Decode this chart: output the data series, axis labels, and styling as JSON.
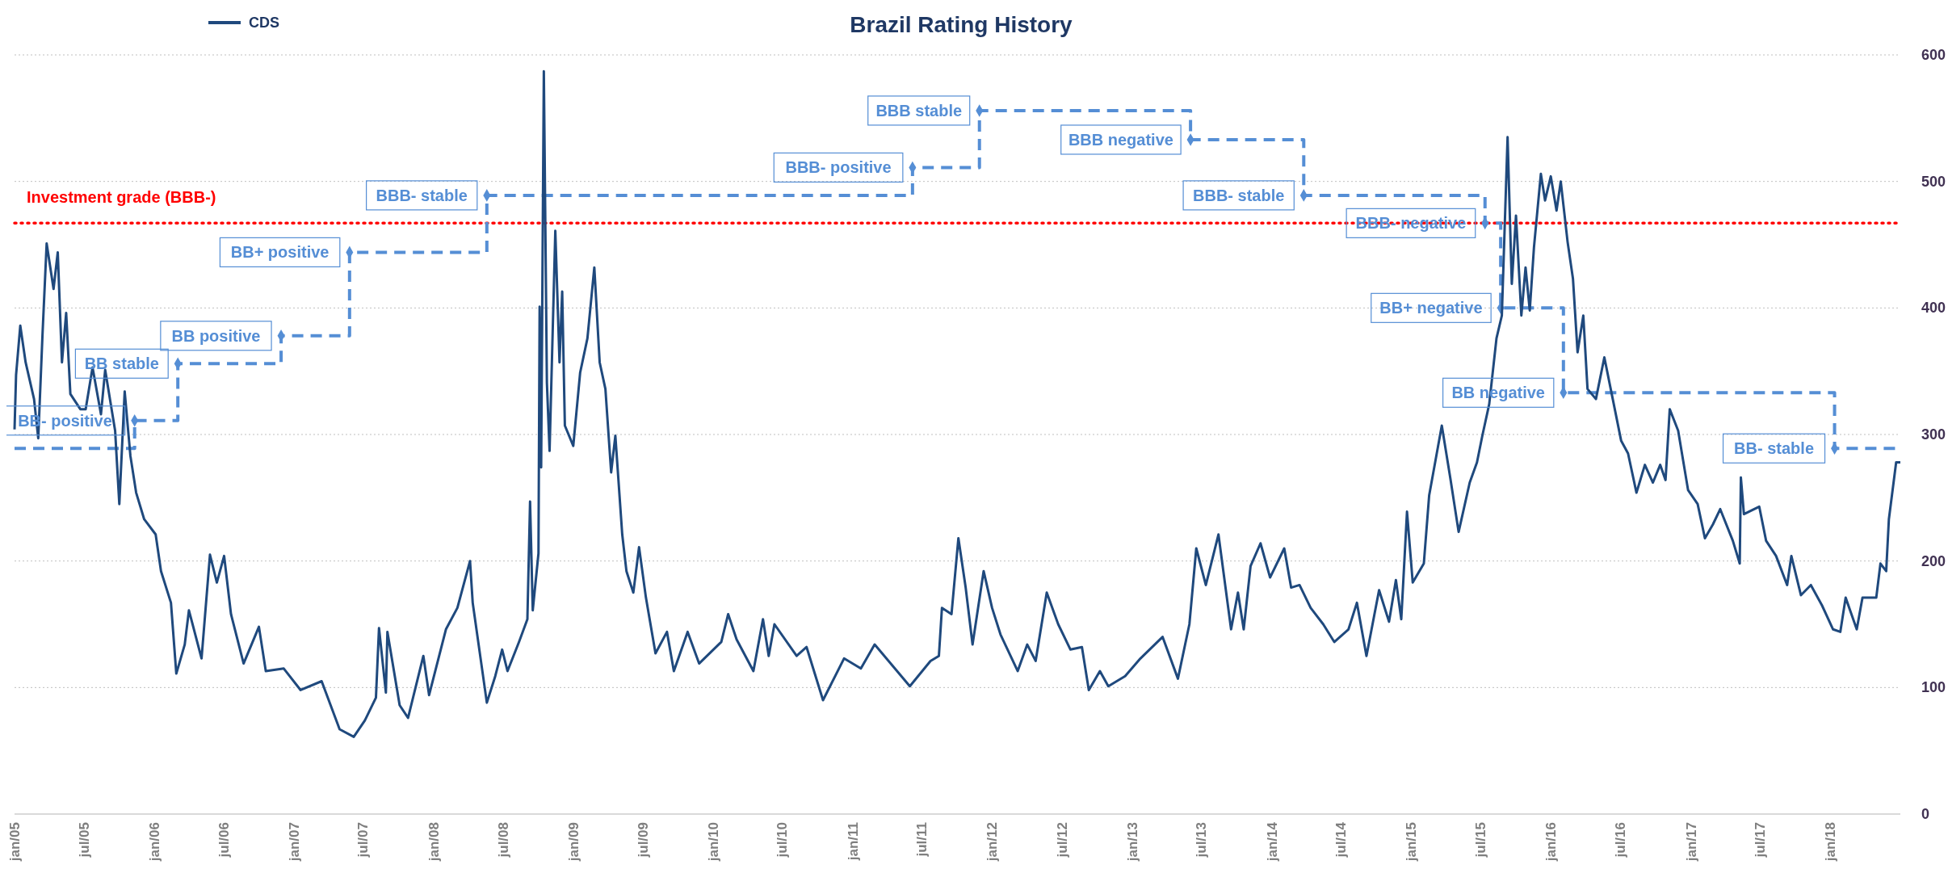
{
  "chart_data": {
    "type": "line",
    "title": "Brazil Rating History",
    "xlim": [
      "2005-01-01",
      "2018-07-03"
    ],
    "xticks": [
      {
        "value": "2005-01-01",
        "label": "jan/05"
      },
      {
        "value": "2005-07-01",
        "label": "jul/05"
      },
      {
        "value": "2006-01-01",
        "label": "jan/06"
      },
      {
        "value": "2006-07-01",
        "label": "jul/06"
      },
      {
        "value": "2007-01-01",
        "label": "jan/07"
      },
      {
        "value": "2007-07-01",
        "label": "jul/07"
      },
      {
        "value": "2008-01-01",
        "label": "jan/08"
      },
      {
        "value": "2008-07-01",
        "label": "jul/08"
      },
      {
        "value": "2009-01-01",
        "label": "jan/09"
      },
      {
        "value": "2009-07-01",
        "label": "jul/09"
      },
      {
        "value": "2010-01-01",
        "label": "jan/10"
      },
      {
        "value": "2010-07-01",
        "label": "jul/10"
      },
      {
        "value": "2011-01-01",
        "label": "jan/11"
      },
      {
        "value": "2011-07-01",
        "label": "jul/11"
      },
      {
        "value": "2012-01-01",
        "label": "jan/12"
      },
      {
        "value": "2012-07-01",
        "label": "jul/12"
      },
      {
        "value": "2013-01-01",
        "label": "jan/13"
      },
      {
        "value": "2013-07-01",
        "label": "jul/13"
      },
      {
        "value": "2014-01-01",
        "label": "jan/14"
      },
      {
        "value": "2014-07-01",
        "label": "jul/14"
      },
      {
        "value": "2015-01-01",
        "label": "jan/15"
      },
      {
        "value": "2015-07-01",
        "label": "jul/15"
      },
      {
        "value": "2016-01-01",
        "label": "jan/16"
      },
      {
        "value": "2016-07-01",
        "label": "jul/16"
      },
      {
        "value": "2017-01-01",
        "label": "jan/17"
      },
      {
        "value": "2017-07-01",
        "label": "jul/17"
      },
      {
        "value": "2018-01-01",
        "label": "jan/18"
      }
    ],
    "ylim": [
      0,
      600
    ],
    "yticks": [
      0,
      100,
      200,
      300,
      400,
      500,
      600
    ],
    "grid": "y",
    "legend": "top left",
    "series": [
      {
        "type": "step",
        "color": "#558ed5",
        "line_style": "dashed",
        "marker": "diamond",
        "x": [
          "2005-01-01",
          "2005-11-11",
          "2006-03-04",
          "2006-11-29",
          "2007-05-27",
          "2008-05-20",
          "2011-06-07",
          "2011-11-29",
          "2013-06-03",
          "2014-03-26",
          "2015-07-13",
          "2015-08-23",
          "2016-02-03",
          "2018-01-12",
          "2018-07-03"
        ],
        "values": [
          289,
          311,
          356,
          378,
          444,
          489,
          511,
          556,
          533,
          489,
          467,
          400,
          333,
          289,
          289
        ]
      },
      {
        "type": "line",
        "name": "CDS",
        "color": "#1f497d",
        "line_style": "solid",
        "marker": "none",
        "x": [
          "2005-01-01",
          "2005-01-05",
          "2005-01-16",
          "2005-01-30",
          "2005-02-21",
          "2005-03-04",
          "2005-03-15",
          "2005-03-26",
          "2005-04-13",
          "2005-04-24",
          "2005-05-05",
          "2005-05-16",
          "2005-05-27",
          "2005-06-22",
          "2005-07-06",
          "2005-07-24",
          "2005-08-15",
          "2005-08-26",
          "2005-09-21",
          "2005-10-02",
          "2005-10-16",
          "2005-10-31",
          "2005-11-15",
          "2005-12-06",
          "2006-01-05",
          "2006-01-19",
          "2006-02-14",
          "2006-02-28",
          "2006-03-22",
          "2006-04-02",
          "2006-05-05",
          "2006-05-27",
          "2006-06-14",
          "2006-07-03",
          "2006-07-21",
          "2006-08-23",
          "2006-10-02",
          "2006-10-20",
          "2006-12-06",
          "2007-01-19",
          "2007-03-15",
          "2007-05-01",
          "2007-06-07",
          "2007-07-06",
          "2007-08-04",
          "2007-08-12",
          "2007-08-30",
          "2007-09-03",
          "2007-10-05",
          "2007-10-27",
          "2007-12-06",
          "2007-12-21",
          "2008-02-03",
          "2008-03-04",
          "2008-04-06",
          "2008-04-13",
          "2008-05-20",
          "2008-06-11",
          "2008-06-29",
          "2008-07-13",
          "2008-08-12",
          "2008-09-03",
          "2008-09-10",
          "2008-09-17",
          "2008-10-02",
          "2008-10-05",
          "2008-10-09",
          "2008-10-16",
          "2008-10-24",
          "2008-10-31",
          "2008-11-15",
          "2008-11-26",
          "2008-12-03",
          "2008-12-10",
          "2009-01-01",
          "2009-01-19",
          "2009-02-07",
          "2009-02-25",
          "2009-03-11",
          "2009-03-26",
          "2009-04-10",
          "2009-04-21",
          "2009-05-09",
          "2009-05-20",
          "2009-06-07",
          "2009-06-22",
          "2009-07-10",
          "2009-08-04",
          "2009-09-03",
          "2009-09-21",
          "2009-10-27",
          "2009-11-26",
          "2010-01-23",
          "2010-02-10",
          "2010-03-04",
          "2010-04-17",
          "2010-05-12",
          "2010-05-27",
          "2010-06-11",
          "2010-08-08",
          "2010-09-03",
          "2010-10-16",
          "2010-12-10",
          "2011-01-23",
          "2011-02-28",
          "2011-05-31",
          "2011-07-24",
          "2011-08-15",
          "2011-08-23",
          "2011-09-17",
          "2011-10-05",
          "2011-10-24",
          "2011-11-11",
          "2011-12-10",
          "2012-01-01",
          "2012-01-23",
          "2012-03-08",
          "2012-04-02",
          "2012-04-24",
          "2012-05-23",
          "2012-06-22",
          "2012-07-24",
          "2012-08-23",
          "2012-09-10",
          "2012-10-09",
          "2012-10-31",
          "2012-12-14",
          "2013-01-23",
          "2013-03-22",
          "2013-05-01",
          "2013-05-31",
          "2013-06-18",
          "2013-07-13",
          "2013-08-15",
          "2013-09-17",
          "2013-10-05",
          "2013-10-20",
          "2013-11-07",
          "2013-12-03",
          "2013-12-28",
          "2014-02-03",
          "2014-02-21",
          "2014-03-15",
          "2014-04-13",
          "2014-05-16",
          "2014-06-14",
          "2014-07-21",
          "2014-08-12",
          "2014-09-06",
          "2014-10-09",
          "2014-11-04",
          "2014-11-22",
          "2014-12-06",
          "2014-12-21",
          "2015-01-05",
          "2015-02-03",
          "2015-02-17",
          "2015-03-22",
          "2015-04-13",
          "2015-05-05",
          "2015-06-03",
          "2015-06-22",
          "2015-07-06",
          "2015-07-24",
          "2015-08-12",
          "2015-08-26",
          "2015-09-10",
          "2015-09-21",
          "2015-10-02",
          "2015-10-16",
          "2015-10-27",
          "2015-11-07",
          "2015-11-18",
          "2015-12-06",
          "2015-12-17",
          "2016-01-01",
          "2016-01-16",
          "2016-01-27",
          "2016-02-14",
          "2016-02-28",
          "2016-03-11",
          "2016-03-26",
          "2016-04-06",
          "2016-04-28",
          "2016-05-20",
          "2016-06-11",
          "2016-07-03",
          "2016-07-21",
          "2016-08-12",
          "2016-09-03",
          "2016-09-24",
          "2016-10-13",
          "2016-10-27",
          "2016-11-07",
          "2016-11-29",
          "2016-12-25",
          "2017-01-19",
          "2017-02-07",
          "2017-02-28",
          "2017-03-19",
          "2017-04-21",
          "2017-05-09",
          "2017-05-12",
          "2017-05-20",
          "2017-06-29",
          "2017-07-17",
          "2017-08-12",
          "2017-09-10",
          "2017-09-21",
          "2017-10-16",
          "2017-11-11",
          "2017-12-10",
          "2018-01-08",
          "2018-01-27",
          "2018-02-10",
          "2018-03-11",
          "2018-03-26",
          "2018-05-01",
          "2018-05-12",
          "2018-05-27",
          "2018-06-03",
          "2018-06-22",
          "2018-07-03"
        ],
        "values": [
          304,
          347,
          386,
          357,
          328,
          297,
          378,
          451,
          415,
          444,
          357,
          396,
          332,
          320,
          320,
          353,
          316,
          351,
          303,
          245,
          334,
          283,
          254,
          233,
          221,
          192,
          167,
          111,
          134,
          161,
          123,
          205,
          183,
          204,
          158,
          119,
          148,
          113,
          115,
          98,
          105,
          67,
          61,
          74,
          92,
          147,
          96,
          144,
          86,
          76,
          125,
          94,
          146,
          163,
          200,
          167,
          88,
          109,
          130,
          113,
          136,
          154,
          247,
          161,
          206,
          401,
          274,
          587,
          341,
          287,
          461,
          357,
          413,
          307,
          291,
          349,
          376,
          432,
          357,
          336,
          270,
          299,
          221,
          192,
          175,
          211,
          171,
          127,
          144,
          113,
          144,
          119,
          136,
          158,
          138,
          113,
          154,
          125,
          150,
          125,
          132,
          90,
          123,
          115,
          134,
          101,
          121,
          125,
          163,
          158,
          218,
          179,
          134,
          192,
          163,
          142,
          113,
          134,
          121,
          175,
          150,
          130,
          132,
          98,
          113,
          101,
          109,
          123,
          140,
          107,
          150,
          210,
          181,
          221,
          146,
          175,
          146,
          196,
          214,
          187,
          210,
          179,
          181,
          163,
          150,
          136,
          146,
          167,
          125,
          177,
          152,
          185,
          154,
          239,
          183,
          198,
          252,
          307,
          266,
          223,
          262,
          278,
          299,
          324,
          376,
          394,
          535,
          419,
          473,
          394,
          432,
          398,
          448,
          506,
          485,
          504,
          477,
          500,
          452,
          423,
          365,
          394,
          336,
          328,
          361,
          328,
          295,
          285,
          254,
          276,
          262,
          276,
          264,
          320,
          303,
          256,
          245,
          218,
          229,
          241,
          216,
          198,
          266,
          237,
          243,
          216,
          204,
          181,
          204,
          173,
          181,
          165,
          146,
          144,
          171,
          146,
          171,
          171,
          198,
          192,
          233,
          278,
          278
        ]
      }
    ],
    "ref_lines": [
      {
        "axis": "y",
        "value": 467,
        "label": "Investment grade (BBB-)",
        "color": "#ff0000",
        "line_style": "dotted"
      }
    ],
    "annotations": [
      {
        "text": "BB- positive",
        "x": "2005-11-11",
        "y": 311
      },
      {
        "text": "BB stable",
        "x": "2006-03-04",
        "y": 356
      },
      {
        "text": "BB positive",
        "x": "2006-11-29",
        "y": 378
      },
      {
        "text": "BB+ positive",
        "x": "2007-05-27",
        "y": 444
      },
      {
        "text": "BBB- stable",
        "x": "2008-05-20",
        "y": 489
      },
      {
        "text": "BBB- positive",
        "x": "2011-06-07",
        "y": 511
      },
      {
        "text": "BBB stable",
        "x": "2011-11-29",
        "y": 556
      },
      {
        "text": "BBB negative",
        "x": "2013-06-03",
        "y": 533
      },
      {
        "text": "BBB- stable",
        "x": "2014-03-26",
        "y": 489
      },
      {
        "text": "BBB- negative",
        "x": "2015-07-13",
        "y": 467
      },
      {
        "text": "BB+ negative",
        "x": "2015-08-23",
        "y": 400
      },
      {
        "text": "BB negative",
        "x": "2016-02-03",
        "y": 333
      },
      {
        "text": "BB- stable",
        "x": "2018-01-12",
        "y": 289
      }
    ]
  }
}
